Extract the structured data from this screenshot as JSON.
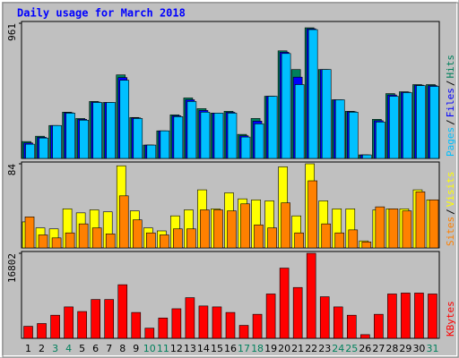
{
  "chart_data": [
    {
      "type": "bar",
      "title": "Daily usage for March 2018",
      "categories": [
        "1",
        "2",
        "3",
        "4",
        "5",
        "6",
        "7",
        "8",
        "9",
        "10",
        "11",
        "12",
        "13",
        "14",
        "15",
        "16",
        "17",
        "18",
        "19",
        "20",
        "21",
        "22",
        "23",
        "24",
        "25",
        "26",
        "27",
        "28",
        "29",
        "30",
        "31"
      ],
      "ylim": [
        0,
        961
      ],
      "yticks": [
        961
      ],
      "legend_separator": "/",
      "series": [
        {
          "name": "Hits",
          "color": "#00805c",
          "values": [
            120,
            158,
            234,
            329,
            284,
            405,
            398,
            594,
            291,
            95,
            196,
            310,
            430,
            354,
            322,
            335,
            171,
            284,
            442,
            765,
            632,
            929,
            632,
            417,
            335,
            25,
            278,
            461,
            474,
            525,
            525
          ]
        },
        {
          "name": "Files",
          "color": "#0000ff",
          "values": [
            110,
            150,
            234,
            325,
            278,
            401,
            398,
            575,
            288,
            95,
            196,
            303,
            417,
            341,
            322,
            328,
            161,
            265,
            442,
            755,
            578,
            922,
            632,
            417,
            332,
            25,
            268,
            451,
            471,
            521,
            518
          ]
        },
        {
          "name": "Pages",
          "color": "#00c0ff",
          "values": [
            101,
            145,
            234,
            322,
            272,
            398,
            398,
            556,
            284,
            95,
            196,
            297,
            405,
            329,
            322,
            322,
            152,
            246,
            442,
            746,
            525,
            916,
            632,
            417,
            329,
            25,
            259,
            442,
            468,
            518,
            512
          ]
        }
      ]
    },
    {
      "type": "bar",
      "categories": [
        "1",
        "2",
        "3",
        "4",
        "5",
        "6",
        "7",
        "8",
        "9",
        "10",
        "11",
        "12",
        "13",
        "14",
        "15",
        "16",
        "17",
        "18",
        "19",
        "20",
        "21",
        "22",
        "23",
        "24",
        "25",
        "26",
        "27",
        "28",
        "29",
        "30",
        "31"
      ],
      "ylim": [
        0,
        84
      ],
      "yticks": [
        84
      ],
      "legend_separator": "/",
      "series": [
        {
          "name": "Visits",
          "color": "#ffff00",
          "values": [
            26,
            20,
            19,
            39,
            35,
            38,
            36,
            82,
            37,
            20,
            17,
            32,
            38,
            58,
            39,
            55,
            49,
            48,
            47,
            81,
            32,
            84,
            47,
            39,
            39,
            7,
            38,
            39,
            39,
            58,
            48
          ]
        },
        {
          "name": "Sites",
          "color": "#ff8000",
          "values": [
            31,
            13,
            10,
            15,
            24,
            20,
            14,
            52,
            28,
            15,
            13,
            19,
            19,
            38,
            38,
            37,
            44,
            23,
            20,
            45,
            15,
            67,
            24,
            15,
            18,
            6,
            41,
            39,
            37,
            56,
            48
          ]
        }
      ]
    },
    {
      "type": "bar",
      "categories": [
        "1",
        "2",
        "3",
        "4",
        "5",
        "6",
        "7",
        "8",
        "9",
        "10",
        "11",
        "12",
        "13",
        "14",
        "15",
        "16",
        "17",
        "18",
        "19",
        "20",
        "21",
        "22",
        "23",
        "24",
        "25",
        "26",
        "27",
        "28",
        "29",
        "30",
        "31"
      ],
      "category_colors": [
        "#000000",
        "#000000",
        "#00805c",
        "#00805c",
        "#000000",
        "#000000",
        "#000000",
        "#000000",
        "#000000",
        "#00805c",
        "#00805c",
        "#000000",
        "#000000",
        "#000000",
        "#000000",
        "#000000",
        "#00805c",
        "#00805c",
        "#000000",
        "#000000",
        "#000000",
        "#000000",
        "#000000",
        "#00805c",
        "#00805c",
        "#000000",
        "#000000",
        "#000000",
        "#000000",
        "#000000",
        "#00805c"
      ],
      "ylim": [
        0,
        16802
      ],
      "yticks": [
        16802
      ],
      "series": [
        {
          "name": "KBytes",
          "color": "#ff0000",
          "values": [
            2374,
            2922,
            4565,
            6209,
            5296,
            7670,
            7670,
            10591,
            5113,
            2009,
            4017,
            5843,
            8035,
            6391,
            6209,
            5113,
            2556,
            4748,
            8765,
            13878,
            10043,
            16802,
            8217,
            6209,
            4565,
            730,
            4748,
            8765,
            8948,
            8948,
            8765
          ]
        }
      ]
    }
  ]
}
